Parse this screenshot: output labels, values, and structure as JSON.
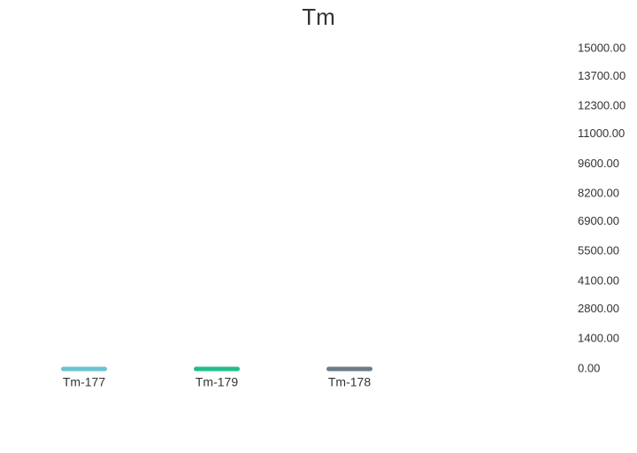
{
  "chart_data": {
    "type": "bar",
    "title": "Tm",
    "xlabel": "",
    "ylabel": "",
    "categories": [
      "Tm-177",
      "Tm-179",
      "Tm-178"
    ],
    "values": [
      0,
      0,
      0
    ],
    "colors": [
      "#6cc3cf",
      "#22bd8c",
      "#6b7c89"
    ],
    "ylim": [
      0,
      15000
    ],
    "yticks": [
      "15000.00",
      "13700.00",
      "12300.00",
      "11000.00",
      "9600.00",
      "8200.00",
      "6900.00",
      "5500.00",
      "4100.00",
      "2800.00",
      "1400.00",
      "0.00"
    ],
    "yaxis_position": "right",
    "grid": false,
    "legend": "none"
  }
}
